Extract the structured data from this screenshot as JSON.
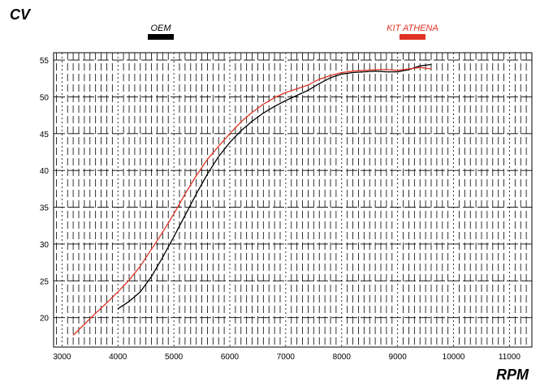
{
  "chart_data": {
    "type": "line",
    "title": "",
    "xlabel": "RPM",
    "ylabel": "CV",
    "xlim": [
      2850,
      11400
    ],
    "ylim": [
      16,
      56
    ],
    "x_ticks": [
      3000,
      4000,
      5000,
      6000,
      7000,
      8000,
      9000,
      10000,
      11000
    ],
    "y_ticks": [
      20,
      25,
      30,
      35,
      40,
      45,
      50,
      55
    ],
    "grid": true,
    "legend_position": "top",
    "series": [
      {
        "name": "OEM",
        "color": "#000000",
        "x": [
          4000,
          4200,
          4400,
          4600,
          4800,
          5000,
          5200,
          5400,
          5600,
          5800,
          6000,
          6200,
          6400,
          6600,
          6800,
          7000,
          7200,
          7400,
          7600,
          7800,
          8000,
          8200,
          8400,
          8600,
          8800,
          9000,
          9200,
          9400,
          9600
        ],
        "y": [
          21.2,
          22.2,
          23.5,
          25.6,
          28.2,
          31.0,
          33.9,
          36.8,
          39.5,
          41.9,
          43.8,
          45.4,
          46.7,
          47.8,
          48.7,
          49.5,
          50.2,
          50.9,
          51.8,
          52.6,
          53.1,
          53.3,
          53.4,
          53.5,
          53.4,
          53.4,
          53.7,
          54.2,
          54.4
        ]
      },
      {
        "name": "KIT ATHENA",
        "color": "#e03222",
        "x": [
          3200,
          3400,
          3600,
          3800,
          4000,
          4200,
          4400,
          4600,
          4800,
          5000,
          5200,
          5400,
          5600,
          5800,
          6000,
          6200,
          6400,
          6600,
          6800,
          7000,
          7200,
          7400,
          7600,
          7800,
          8000,
          8200,
          8400,
          8600,
          8800,
          9000,
          9200,
          9400,
          9600
        ],
        "y": [
          17.6,
          19.1,
          20.6,
          22.0,
          23.5,
          25.1,
          27.0,
          29.3,
          31.6,
          34.1,
          36.8,
          39.3,
          41.5,
          43.3,
          45.0,
          46.6,
          47.9,
          49.0,
          49.9,
          50.6,
          51.1,
          51.6,
          52.4,
          52.9,
          53.3,
          53.5,
          53.6,
          53.7,
          53.7,
          53.6,
          53.8,
          54.0,
          53.8
        ]
      }
    ]
  }
}
